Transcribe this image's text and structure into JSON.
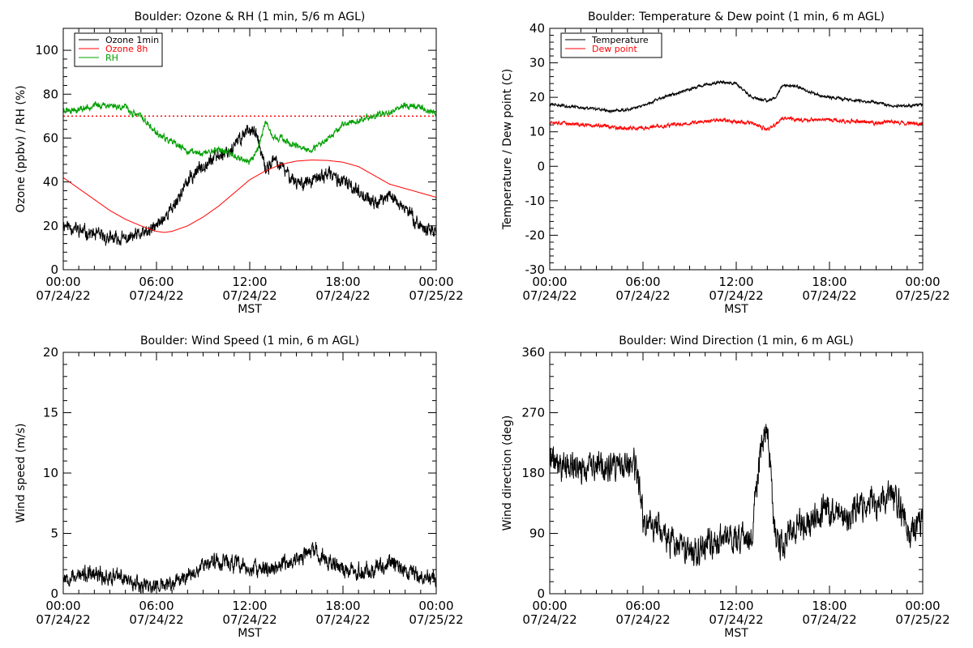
{
  "chart_data": [
    {
      "id": "ozone",
      "type": "line",
      "title": "Boulder: Ozone & RH (1 min, 5/6 m AGL)",
      "xlabel": "MST",
      "ylabel": "Ozone (ppbv) / RH (%)",
      "xlim": [
        0,
        24
      ],
      "ylim": [
        0,
        110
      ],
      "yticks": [
        0,
        20,
        40,
        60,
        80,
        100
      ],
      "xticks": [
        {
          "hour": 0,
          "time": "00:00",
          "date": "07/24/22"
        },
        {
          "hour": 6,
          "time": "06:00",
          "date": "07/24/22"
        },
        {
          "hour": 12,
          "time": "12:00",
          "date": "07/24/22"
        },
        {
          "hour": 18,
          "time": "18:00",
          "date": "07/24/22"
        },
        {
          "hour": 24,
          "time": "00:00",
          "date": "07/25/22"
        }
      ],
      "legend_position": "top-left",
      "reference_line": {
        "y": 70,
        "color": "#ff0000",
        "style": "dotted"
      },
      "series": [
        {
          "name": "Ozone 1min",
          "color": "#000000",
          "noise": 2.5,
          "seed": 11,
          "points": [
            [
              0,
              21
            ],
            [
              1,
              18
            ],
            [
              2,
              16
            ],
            [
              3,
              14
            ],
            [
              4,
              14
            ],
            [
              5,
              16
            ],
            [
              5.5,
              17
            ],
            [
              6,
              20
            ],
            [
              7,
              28
            ],
            [
              8,
              40
            ],
            [
              9,
              48
            ],
            [
              10,
              52
            ],
            [
              11,
              56
            ],
            [
              11.5,
              61
            ],
            [
              12,
              65
            ],
            [
              12.5,
              60
            ],
            [
              13,
              45
            ],
            [
              13.5,
              50
            ],
            [
              14,
              47
            ],
            [
              15,
              40
            ],
            [
              16,
              40
            ],
            [
              17,
              44
            ],
            [
              18,
              40
            ],
            [
              19,
              36
            ],
            [
              20,
              30
            ],
            [
              21,
              34
            ],
            [
              22,
              28
            ],
            [
              23,
              20
            ],
            [
              23.5,
              18
            ],
            [
              24,
              18
            ]
          ]
        },
        {
          "name": "Ozone 8h",
          "color": "#ff0000",
          "noise": 0,
          "seed": 0,
          "points": [
            [
              0,
              42
            ],
            [
              1,
              37
            ],
            [
              2,
              32
            ],
            [
              3,
              27
            ],
            [
              4,
              23
            ],
            [
              5,
              20
            ],
            [
              6,
              17.5
            ],
            [
              6.5,
              17
            ],
            [
              7,
              17.5
            ],
            [
              8,
              20
            ],
            [
              9,
              24
            ],
            [
              10,
              29
            ],
            [
              11,
              35
            ],
            [
              12,
              41
            ],
            [
              13,
              45
            ],
            [
              14,
              48
            ],
            [
              15,
              49.5
            ],
            [
              16,
              50
            ],
            [
              17,
              49.8
            ],
            [
              18,
              49
            ],
            [
              19,
              47
            ],
            [
              20,
              43
            ],
            [
              21,
              39
            ],
            [
              22,
              37
            ],
            [
              23,
              35
            ],
            [
              24,
              33
            ]
          ]
        },
        {
          "name": "RH",
          "color": "#00a000",
          "noise": 1.2,
          "seed": 23,
          "points": [
            [
              0,
              73
            ],
            [
              1,
              73
            ],
            [
              2,
              75
            ],
            [
              3,
              75
            ],
            [
              4,
              74
            ],
            [
              4.5,
              71
            ],
            [
              5,
              70
            ],
            [
              5.5,
              66
            ],
            [
              6,
              62
            ],
            [
              7,
              58
            ],
            [
              8,
              54
            ],
            [
              9,
              53
            ],
            [
              10,
              55
            ],
            [
              11,
              52
            ],
            [
              12,
              49
            ],
            [
              12.5,
              55
            ],
            [
              13,
              67
            ],
            [
              13.5,
              60
            ],
            [
              14,
              60
            ],
            [
              15,
              56
            ],
            [
              16,
              54
            ],
            [
              17,
              60
            ],
            [
              18,
              66
            ],
            [
              19,
              68
            ],
            [
              20,
              70
            ],
            [
              21,
              72
            ],
            [
              22,
              75
            ],
            [
              23,
              74
            ],
            [
              24,
              71
            ]
          ]
        }
      ]
    },
    {
      "id": "temperature",
      "type": "line",
      "title": "Boulder: Temperature & Dew point (1 min, 6 m AGL)",
      "xlabel": "MST",
      "ylabel": "Temperature / Dew point (C)",
      "xlim": [
        0,
        24
      ],
      "ylim": [
        -30,
        40
      ],
      "yticks": [
        -30,
        -20,
        -10,
        0,
        10,
        20,
        30,
        40
      ],
      "xticks": [
        {
          "hour": 0,
          "time": "00:00",
          "date": "07/24/22"
        },
        {
          "hour": 6,
          "time": "06:00",
          "date": "07/24/22"
        },
        {
          "hour": 12,
          "time": "12:00",
          "date": "07/24/22"
        },
        {
          "hour": 18,
          "time": "18:00",
          "date": "07/24/22"
        },
        {
          "hour": 24,
          "time": "00:00",
          "date": "07/25/22"
        }
      ],
      "legend_position": "top-left",
      "series": [
        {
          "name": "Temperature",
          "color": "#000000",
          "noise": 0.35,
          "seed": 31,
          "points": [
            [
              0,
              18
            ],
            [
              2,
              17
            ],
            [
              4,
              16
            ],
            [
              5,
              16.5
            ],
            [
              6,
              17.5
            ],
            [
              7,
              19.5
            ],
            [
              8,
              21
            ],
            [
              9,
              22.5
            ],
            [
              10,
              23.5
            ],
            [
              11,
              24.5
            ],
            [
              12,
              24
            ],
            [
              13,
              20
            ],
            [
              14,
              19
            ],
            [
              14.5,
              20
            ],
            [
              15,
              23.5
            ],
            [
              16,
              23
            ],
            [
              17,
              21
            ],
            [
              18,
              20
            ],
            [
              19,
              19.5
            ],
            [
              20,
              19
            ],
            [
              21,
              18.5
            ],
            [
              22,
              17.5
            ],
            [
              23,
              17.5
            ],
            [
              24,
              18
            ]
          ]
        },
        {
          "name": "Dew point",
          "color": "#ff0000",
          "noise": 0.45,
          "seed": 37,
          "points": [
            [
              0,
              13
            ],
            [
              2,
              12
            ],
            [
              4,
              11.5
            ],
            [
              5,
              11
            ],
            [
              6,
              11
            ],
            [
              7,
              11.5
            ],
            [
              8,
              12
            ],
            [
              9,
              12.5
            ],
            [
              10,
              13
            ],
            [
              11,
              13.5
            ],
            [
              12,
              13
            ],
            [
              13,
              12.5
            ],
            [
              14,
              10.5
            ],
            [
              14.5,
              12
            ],
            [
              15,
              14
            ],
            [
              16,
              13.5
            ],
            [
              17,
              13.5
            ],
            [
              18,
              13.5
            ],
            [
              19,
              13
            ],
            [
              20,
              13
            ],
            [
              21,
              12.5
            ],
            [
              22,
              13
            ],
            [
              23,
              12.5
            ],
            [
              24,
              12.5
            ]
          ]
        }
      ]
    },
    {
      "id": "windspeed",
      "type": "line",
      "title": "Boulder: Wind Speed (1 min, 6 m AGL)",
      "xlabel": "MST",
      "ylabel": "Wind speed (m/s)",
      "xlim": [
        0,
        24
      ],
      "ylim": [
        0,
        20
      ],
      "yticks": [
        0,
        5,
        10,
        15,
        20
      ],
      "xticks": [
        {
          "hour": 0,
          "time": "00:00",
          "date": "07/24/22"
        },
        {
          "hour": 6,
          "time": "06:00",
          "date": "07/24/22"
        },
        {
          "hour": 12,
          "time": "12:00",
          "date": "07/24/22"
        },
        {
          "hour": 18,
          "time": "18:00",
          "date": "07/24/22"
        },
        {
          "hour": 24,
          "time": "00:00",
          "date": "07/25/22"
        }
      ],
      "series": [
        {
          "name": "",
          "color": "#000000",
          "noise": 0.55,
          "seed": 53,
          "clip_min": 0,
          "points": [
            [
              0,
              1.5
            ],
            [
              2,
              1.5
            ],
            [
              4,
              1.3
            ],
            [
              5,
              0.8
            ],
            [
              6,
              0.6
            ],
            [
              7,
              0.8
            ],
            [
              8,
              1.5
            ],
            [
              9,
              2.5
            ],
            [
              10,
              2.7
            ],
            [
              11,
              2.5
            ],
            [
              12,
              2
            ],
            [
              13,
              2
            ],
            [
              14,
              2.3
            ],
            [
              15,
              2.8
            ],
            [
              16,
              3.5
            ],
            [
              17,
              2.8
            ],
            [
              18,
              2
            ],
            [
              19,
              1.8
            ],
            [
              20,
              2
            ],
            [
              21,
              2.5
            ],
            [
              22,
              2
            ],
            [
              23,
              1.5
            ],
            [
              24,
              1.2
            ]
          ]
        }
      ]
    },
    {
      "id": "winddir",
      "type": "line",
      "title": "Boulder: Wind Direction (1 min, 6 m AGL)",
      "xlabel": "MST",
      "ylabel": "Wind direction (deg)",
      "xlim": [
        0,
        24
      ],
      "ylim": [
        0,
        360
      ],
      "yticks": [
        0,
        90,
        180,
        270,
        360
      ],
      "xticks": [
        {
          "hour": 0,
          "time": "00:00",
          "date": "07/24/22"
        },
        {
          "hour": 6,
          "time": "06:00",
          "date": "07/24/22"
        },
        {
          "hour": 12,
          "time": "12:00",
          "date": "07/24/22"
        },
        {
          "hour": 18,
          "time": "18:00",
          "date": "07/24/22"
        },
        {
          "hour": 24,
          "time": "00:00",
          "date": "07/25/22"
        }
      ],
      "series": [
        {
          "name": "",
          "color": "#000000",
          "noise": 18,
          "seed": 71,
          "clip_min": 0,
          "clip_max": 360,
          "points": [
            [
              0,
              200
            ],
            [
              1,
              190
            ],
            [
              2,
              185
            ],
            [
              3,
              190
            ],
            [
              4,
              185
            ],
            [
              5,
              190
            ],
            [
              5.5,
              190
            ],
            [
              5.8,
              150
            ],
            [
              6,
              110
            ],
            [
              7,
              100
            ],
            [
              8,
              70
            ],
            [
              9,
              60
            ],
            [
              10,
              75
            ],
            [
              11,
              80
            ],
            [
              12,
              90
            ],
            [
              13,
              80
            ],
            [
              13.5,
              200
            ],
            [
              14,
              250
            ],
            [
              14.5,
              80
            ],
            [
              15,
              70
            ],
            [
              16,
              105
            ],
            [
              17,
              105
            ],
            [
              17.5,
              130
            ],
            [
              18,
              120
            ],
            [
              19,
              110
            ],
            [
              20,
              130
            ],
            [
              21,
              135
            ],
            [
              22,
              150
            ],
            [
              22.5,
              130
            ],
            [
              23,
              95
            ],
            [
              24,
              110
            ]
          ]
        }
      ]
    }
  ]
}
